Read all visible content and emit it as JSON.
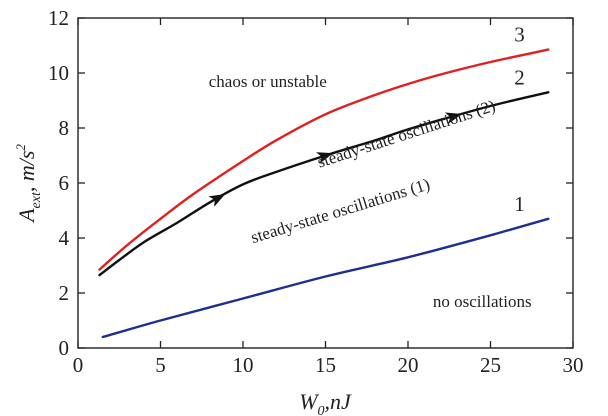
{
  "chart_data": {
    "type": "line",
    "xlim": [
      0,
      30
    ],
    "ylim": [
      0,
      12
    ],
    "x_ticks": [
      0,
      5,
      10,
      15,
      20,
      25,
      30
    ],
    "y_ticks": [
      0,
      2,
      4,
      6,
      8,
      10,
      12
    ],
    "grid": false,
    "xlabel": {
      "main": "W",
      "sub": "0",
      "rest": ",nJ"
    },
    "ylabel": {
      "main": "A",
      "sub": "ext",
      "rest": ", m/s",
      "sup": "2"
    },
    "series": [
      {
        "name": "1",
        "color": "#1f2f8f",
        "points": [
          [
            1.5,
            0.4
          ],
          [
            5,
            1.0
          ],
          [
            10,
            1.8
          ],
          [
            15,
            2.6
          ],
          [
            20,
            3.3
          ],
          [
            25,
            4.1
          ],
          [
            28.5,
            4.7
          ]
        ]
      },
      {
        "name": "2",
        "color": "#111111",
        "points": [
          [
            1.3,
            2.65
          ],
          [
            2.5,
            3.2
          ],
          [
            4,
            3.85
          ],
          [
            6,
            4.55
          ],
          [
            8,
            5.3
          ],
          [
            10,
            5.95
          ],
          [
            12,
            6.4
          ],
          [
            15,
            7.0
          ],
          [
            18,
            7.55
          ],
          [
            20,
            7.95
          ],
          [
            22,
            8.3
          ],
          [
            25,
            8.8
          ],
          [
            28.5,
            9.3
          ]
        ],
        "arrows_at": [
          8.5,
          15,
          22.8
        ]
      },
      {
        "name": "3",
        "color": "#e02020",
        "points": [
          [
            1.3,
            2.85
          ],
          [
            3,
            3.75
          ],
          [
            5,
            4.7
          ],
          [
            7,
            5.6
          ],
          [
            10,
            6.8
          ],
          [
            12,
            7.55
          ],
          [
            15,
            8.5
          ],
          [
            18,
            9.2
          ],
          [
            20,
            9.6
          ],
          [
            22,
            9.95
          ],
          [
            25,
            10.4
          ],
          [
            28.5,
            10.85
          ]
        ]
      }
    ],
    "annotations": [
      {
        "text": "chaos or unstable",
        "x": 11.5,
        "y": 9.5
      },
      {
        "text": "steady-state oscillations (2)",
        "x": 20,
        "y": 7.6,
        "rotate": -18
      },
      {
        "text": "steady-state oscillations (1)",
        "x": 16,
        "y": 4.8,
        "rotate": -17
      },
      {
        "text": "no oscillations",
        "x": 24.5,
        "y": 1.5
      }
    ]
  }
}
